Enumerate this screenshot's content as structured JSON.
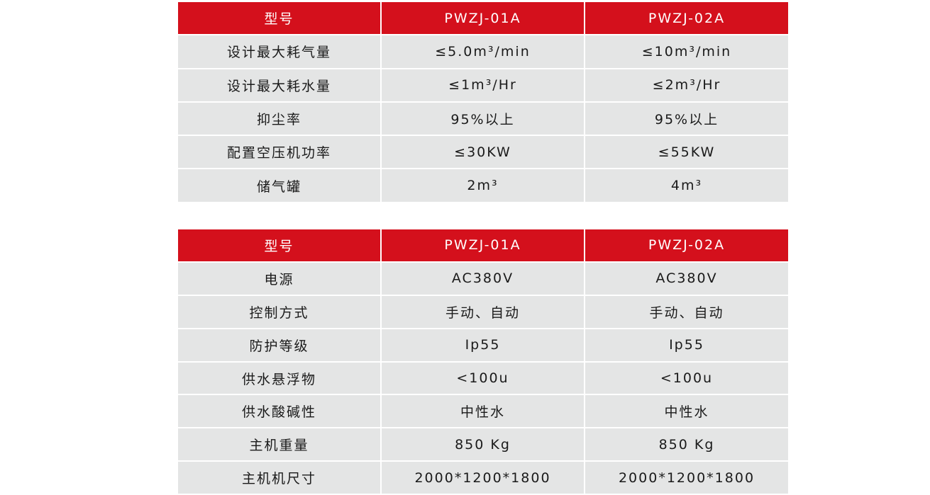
{
  "colors": {
    "header_bg": "#d4101c",
    "row_bg": "#e4e5e5"
  },
  "table1": {
    "headers": [
      "型号",
      "PWZJ-01A",
      "PWZJ-02A"
    ],
    "rows": [
      [
        "设计最大耗气量",
        "≤5.0m³/min",
        "≤10m³/min"
      ],
      [
        "设计最大耗水量",
        "≤1m³/Hr",
        "≤2m³/Hr"
      ],
      [
        "抑尘率",
        "95%以上",
        "95%以上"
      ],
      [
        "配置空压机功率",
        "≤30KW",
        "≤55KW"
      ],
      [
        "储气罐",
        "2m³",
        "4m³"
      ]
    ]
  },
  "table2": {
    "headers": [
      "型号",
      "PWZJ-01A",
      "PWZJ-02A"
    ],
    "rows": [
      [
        "电源",
        "AC380V",
        "AC380V"
      ],
      [
        "控制方式",
        "手动、自动",
        "手动、自动"
      ],
      [
        "防护等级",
        "Ip55",
        "Ip55"
      ],
      [
        "供水悬浮物",
        "<100u",
        "<100u"
      ],
      [
        "供水酸碱性",
        "中性水",
        "中性水"
      ],
      [
        "主机重量",
        "850 Kg",
        "850 Kg"
      ],
      [
        "主机机尺寸",
        "2000*1200*1800",
        "2000*1200*1800"
      ]
    ]
  }
}
